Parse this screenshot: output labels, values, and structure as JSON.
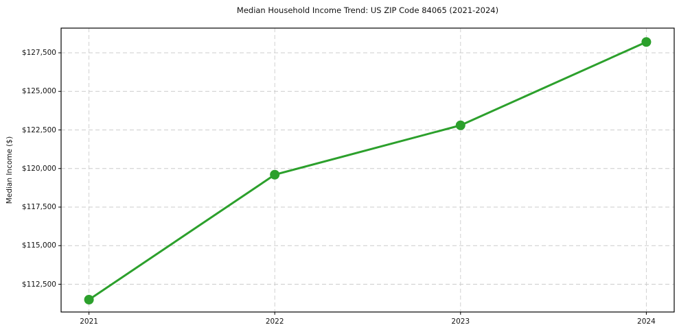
{
  "chart_data": {
    "type": "line",
    "title": "Median Household Income Trend: US ZIP Code 84065 (2021-2024)",
    "xlabel": "",
    "ylabel": "Median Income ($)",
    "x": [
      2021,
      2022,
      2023,
      2024
    ],
    "xtick_labels": [
      "2021",
      "2022",
      "2023",
      "2024"
    ],
    "values": [
      111500,
      119600,
      122800,
      128200
    ],
    "yticks": [
      112500,
      115000,
      117500,
      120000,
      122500,
      125000,
      127500
    ],
    "ytick_labels": [
      "$112,500",
      "$115,000",
      "$117,500",
      "$120,000",
      "$122,500",
      "$125,000",
      "$127,500"
    ],
    "ylim": [
      110700,
      129100
    ],
    "xlim": [
      2020.85,
      2024.15
    ],
    "grid": true,
    "grid_style": "dashed",
    "legend_position": "none",
    "line_color": "#2ca02c",
    "marker": "circle",
    "grid_color": "#cccccc",
    "spine_color": "#000000",
    "background": "#ffffff"
  }
}
